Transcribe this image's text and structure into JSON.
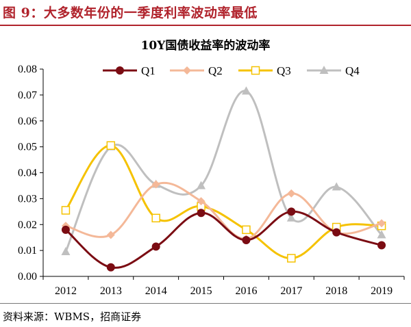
{
  "figure": {
    "title": "图 9：大多数年份的一季度利率波动率最低",
    "source": "资料来源：WBMS，招商证券"
  },
  "chart_data": {
    "type": "line",
    "title": "10Y国债收益率的波动率",
    "xlabel": "",
    "ylabel": "",
    "categories": [
      "2012",
      "2013",
      "2014",
      "2015",
      "2016",
      "2017",
      "2018",
      "2019"
    ],
    "ylim": [
      0,
      0.08
    ],
    "yticks": [
      "0.00",
      "0.01",
      "0.02",
      "0.03",
      "0.04",
      "0.05",
      "0.06",
      "0.07",
      "0.08"
    ],
    "smooth": true,
    "grid": false,
    "legend_position": "top",
    "series": [
      {
        "name": "Q1",
        "color": "#7b0c13",
        "marker": "circle",
        "values": [
          0.018,
          0.0035,
          0.0115,
          0.0245,
          0.014,
          0.025,
          0.017,
          0.012
        ]
      },
      {
        "name": "Q2",
        "color": "#f4b898",
        "marker": "diamond",
        "values": [
          0.0195,
          0.016,
          0.0355,
          0.029,
          0.0145,
          0.032,
          0.017,
          0.0205
        ]
      },
      {
        "name": "Q3",
        "color": "#f5c200",
        "marker": "square",
        "values": [
          0.0255,
          0.0505,
          0.0225,
          0.027,
          0.018,
          0.007,
          0.019,
          0.0195
        ]
      },
      {
        "name": "Q4",
        "color": "#bfbfbf",
        "marker": "triangle",
        "values": [
          0.0095,
          0.05,
          0.0355,
          0.035,
          0.0715,
          0.0225,
          0.0345,
          0.016
        ]
      }
    ]
  }
}
